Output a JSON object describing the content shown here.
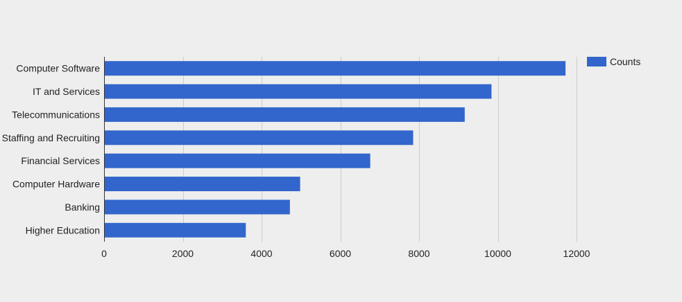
{
  "chart_data": {
    "type": "bar",
    "orientation": "horizontal",
    "categories": [
      "Computer Software",
      "IT and Services",
      "Telecommunications",
      "Staffing and Recruiting",
      "Financial Services",
      "Computer Hardware",
      "Banking",
      "Higher Education"
    ],
    "series": [
      {
        "name": "Counts",
        "color": "#3366cc",
        "values": [
          11720,
          9840,
          9160,
          7850,
          6760,
          4980,
          4720,
          3600
        ]
      }
    ],
    "title": "",
    "xlabel": "",
    "ylabel": "",
    "xlim": [
      0,
      12000
    ],
    "x_ticks": [
      0,
      2000,
      4000,
      6000,
      8000,
      10000,
      12000
    ],
    "x_tick_labels": [
      "0",
      "2000",
      "4000",
      "6000",
      "8000",
      "10000",
      "12000"
    ],
    "grid": true,
    "legend_position": "top-right"
  },
  "colors": {
    "background": "#eeeeee",
    "bar": "#3366cc",
    "grid": "#cccccc",
    "axis": "#333333",
    "text": "#222222"
  }
}
